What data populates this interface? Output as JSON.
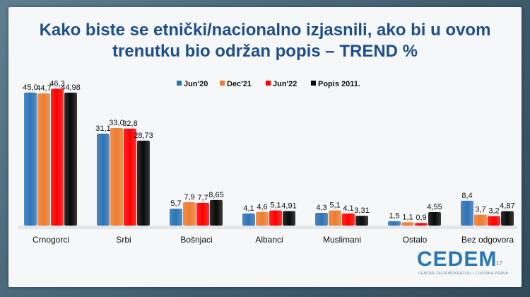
{
  "title_line1": "Kako biste se etnički/nacionalno izjasnili, ako bi u ovom",
  "title_line2": "trenutku bio održan popis – TREND %",
  "logo_text": "CEDEM",
  "logo_subtitle": "CENTAR ZA DEMOKRATIJU I LJUDSKA PRAVA",
  "page_number": "17",
  "chart_data": {
    "type": "bar",
    "title": "Kako biste se etnički/nacionalno izjasnili, ako bi u ovom trenutku bio održan popis – TREND %",
    "categories": [
      "Crnogorci",
      "Srbi",
      "Bošnjaci",
      "Albanci",
      "Muslimani",
      "Ostalo",
      "Bez odgovora"
    ],
    "series": [
      {
        "name": "Jun'20",
        "color": "#2e74b5",
        "values": [
          45.0,
          31.1,
          5.7,
          4.1,
          4.3,
          1.5,
          8.4
        ],
        "labels": [
          "45,0",
          "31,1",
          "5,7",
          "4,1",
          "4,3",
          "1,5",
          "8,4"
        ]
      },
      {
        "name": "Dec'21",
        "color": "#ed7d31",
        "values": [
          44.7,
          33.0,
          7.9,
          4.6,
          5.1,
          1.1,
          3.7
        ],
        "labels": [
          "44,7",
          "33,0",
          "7,9",
          "4,6",
          "5,1",
          "1,1",
          "3,7"
        ]
      },
      {
        "name": "Jun'22",
        "color": "#ff0000",
        "values": [
          46.3,
          32.8,
          7.7,
          5.1,
          4.1,
          0.9,
          3.2
        ],
        "labels": [
          "46,3",
          "32,8",
          "7,7",
          "5,1",
          "4,1",
          "0,9",
          "3,2"
        ]
      },
      {
        "name": "Popis 2011.",
        "color": "#0a0a0a",
        "values": [
          44.98,
          28.73,
          8.65,
          4.91,
          3.31,
          4.55,
          4.87
        ],
        "labels": [
          "44,98",
          "28,73",
          "8,65",
          "4,91",
          "3,31",
          "4,55",
          "4,87"
        ]
      }
    ],
    "legend_position": "top-center",
    "grid": false,
    "ylim": [
      0,
      50
    ]
  }
}
